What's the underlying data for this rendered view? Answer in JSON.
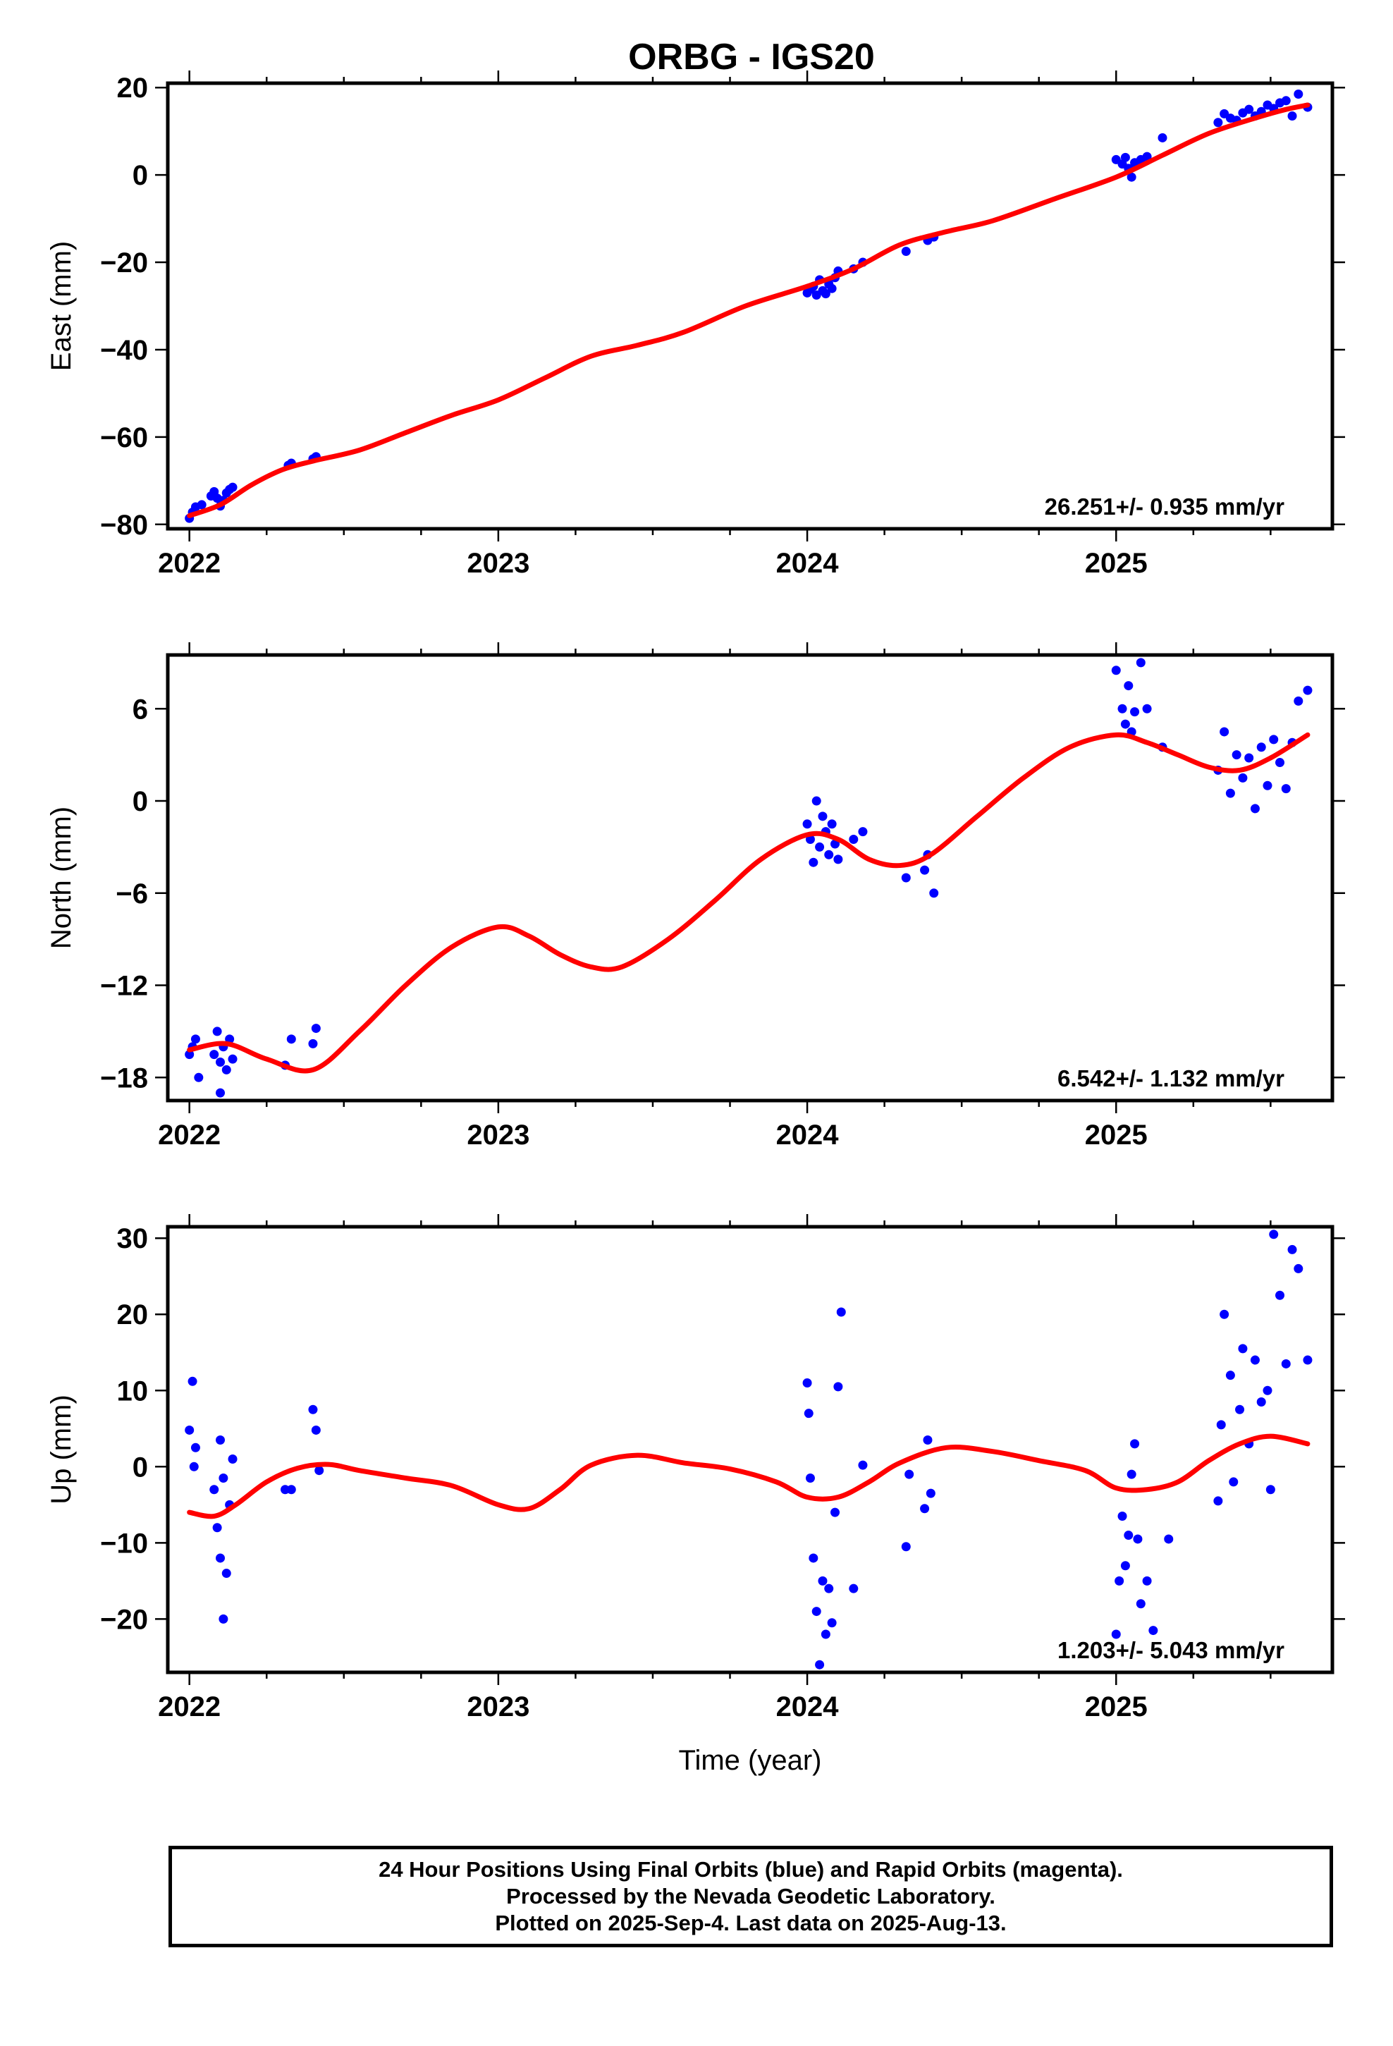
{
  "title": "ORBG - IGS20",
  "colors": {
    "final_orbits": "#0000ff",
    "fit_line": "#ff0000",
    "frame": "#000000"
  },
  "chart_data": [
    {
      "type": "scatter",
      "panel": "east",
      "ylabel": "East (mm)",
      "xlabel": "",
      "xlim": [
        2021.93,
        2025.7
      ],
      "ylim": [
        -81,
        21
      ],
      "xticks": [
        2022,
        2023,
        2024,
        2025
      ],
      "xtick_labels": [
        "2022",
        "2023",
        "2024",
        "2025"
      ],
      "yticks": [
        -80,
        -60,
        -40,
        -20,
        0,
        20
      ],
      "ytick_labels": [
        "−80",
        "−60",
        "−40",
        "−20",
        "0",
        "20"
      ],
      "velocity_label": "26.251+/- 0.935 mm/yr",
      "series": [
        {
          "style": "points",
          "x": [
            2022.0,
            2022.01,
            2022.02,
            2022.04,
            2022.07,
            2022.08,
            2022.09,
            2022.1,
            2022.11,
            2022.12,
            2022.13,
            2022.14,
            2022.32,
            2022.33,
            2022.4,
            2022.41,
            2024.0,
            2024.01,
            2024.02,
            2024.03,
            2024.04,
            2024.05,
            2024.06,
            2024.07,
            2024.08,
            2024.09,
            2024.1,
            2024.15,
            2024.18,
            2024.32,
            2024.39,
            2024.41,
            2025.0,
            2025.02,
            2025.03,
            2025.04,
            2025.05,
            2025.06,
            2025.08,
            2025.1,
            2025.15,
            2025.33,
            2025.35,
            2025.37,
            2025.39,
            2025.41,
            2025.43,
            2025.45,
            2025.47,
            2025.49,
            2025.51,
            2025.53,
            2025.55,
            2025.57,
            2025.59,
            2025.62
          ],
          "y": [
            -78.6,
            -77.2,
            -76.0,
            -75.5,
            -73.5,
            -72.5,
            -74.0,
            -75.8,
            -74.5,
            -72.8,
            -72.0,
            -71.5,
            -66.5,
            -66.0,
            -65.0,
            -64.5,
            -27.0,
            -26.2,
            -25.5,
            -27.5,
            -24.0,
            -26.5,
            -27.2,
            -25.0,
            -26.0,
            -23.5,
            -22.0,
            -21.5,
            -20.0,
            -17.5,
            -15.0,
            -14.2,
            3.5,
            2.5,
            4.0,
            1.5,
            -0.5,
            2.8,
            3.5,
            4.2,
            8.5,
            12.0,
            14.0,
            13.0,
            12.5,
            14.2,
            15.0,
            13.5,
            14.5,
            16.0,
            15.2,
            16.5,
            17.0,
            13.5,
            18.5,
            15.5
          ]
        },
        {
          "style": "line",
          "x": [
            2022.0,
            2022.1,
            2022.2,
            2022.3,
            2022.4,
            2022.55,
            2022.7,
            2022.85,
            2023.0,
            2023.15,
            2023.3,
            2023.45,
            2023.6,
            2023.8,
            2024.0,
            2024.15,
            2024.3,
            2024.45,
            2024.6,
            2024.8,
            2025.0,
            2025.15,
            2025.3,
            2025.45,
            2025.55,
            2025.62
          ],
          "y": [
            -78.0,
            -75.5,
            -71.0,
            -67.5,
            -65.5,
            -63.0,
            -59.0,
            -55.0,
            -51.5,
            -46.5,
            -41.5,
            -39.0,
            -36.0,
            -30.0,
            -25.5,
            -21.5,
            -16.0,
            -13.0,
            -10.5,
            -5.5,
            -0.5,
            4.5,
            9.5,
            13.0,
            15.0,
            16.0
          ]
        }
      ]
    },
    {
      "type": "scatter",
      "panel": "north",
      "ylabel": "North (mm)",
      "xlabel": "",
      "xlim": [
        2021.93,
        2025.7
      ],
      "ylim": [
        -19.5,
        9.5
      ],
      "xticks": [
        2022,
        2023,
        2024,
        2025
      ],
      "xtick_labels": [
        "2022",
        "2023",
        "2024",
        "2025"
      ],
      "yticks": [
        -18,
        -12,
        -6,
        0,
        6
      ],
      "ytick_labels": [
        "−18",
        "−12",
        "−6",
        "0",
        "6"
      ],
      "velocity_label": "6.542+/- 1.132 mm/yr",
      "series": [
        {
          "style": "points",
          "x": [
            2022.0,
            2022.01,
            2022.02,
            2022.03,
            2022.08,
            2022.09,
            2022.1,
            2022.11,
            2022.12,
            2022.13,
            2022.14,
            2022.1,
            2022.31,
            2022.33,
            2022.4,
            2022.41,
            2024.0,
            2024.01,
            2024.02,
            2024.03,
            2024.04,
            2024.05,
            2024.06,
            2024.07,
            2024.08,
            2024.09,
            2024.1,
            2024.15,
            2024.18,
            2024.32,
            2024.38,
            2024.39,
            2024.41,
            2025.0,
            2025.02,
            2025.03,
            2025.04,
            2025.05,
            2025.06,
            2025.08,
            2025.1,
            2025.15,
            2025.33,
            2025.35,
            2025.37,
            2025.39,
            2025.41,
            2025.43,
            2025.45,
            2025.47,
            2025.49,
            2025.51,
            2025.53,
            2025.55,
            2025.57,
            2025.59,
            2025.62
          ],
          "y": [
            -16.5,
            -16.0,
            -15.5,
            -18.0,
            -16.5,
            -15.0,
            -17.0,
            -16.0,
            -17.5,
            -15.5,
            -16.8,
            -19.0,
            -17.2,
            -15.5,
            -15.8,
            -14.8,
            -1.5,
            -2.5,
            -4.0,
            0.0,
            -3.0,
            -1.0,
            -2.0,
            -3.5,
            -1.5,
            -2.8,
            -3.8,
            -2.5,
            -2.0,
            -5.0,
            -4.5,
            -3.5,
            -6.0,
            8.5,
            6.0,
            5.0,
            7.5,
            4.5,
            5.8,
            9.0,
            6.0,
            3.5,
            2.0,
            4.5,
            0.5,
            3.0,
            1.5,
            2.8,
            -0.5,
            3.5,
            1.0,
            4.0,
            2.5,
            0.8,
            3.8,
            6.5,
            7.2
          ]
        },
        {
          "style": "line",
          "x": [
            2022.0,
            2022.12,
            2022.25,
            2022.4,
            2022.55,
            2022.7,
            2022.85,
            2023.0,
            2023.1,
            2023.2,
            2023.3,
            2023.4,
            2023.55,
            2023.7,
            2023.85,
            2024.0,
            2024.1,
            2024.2,
            2024.3,
            2024.4,
            2024.55,
            2024.7,
            2024.85,
            2025.0,
            2025.1,
            2025.2,
            2025.3,
            2025.4,
            2025.5,
            2025.62
          ],
          "y": [
            -16.2,
            -15.8,
            -16.8,
            -17.5,
            -15.0,
            -12.0,
            -9.5,
            -8.2,
            -8.8,
            -10.0,
            -10.8,
            -10.8,
            -9.0,
            -6.5,
            -3.8,
            -2.2,
            -2.5,
            -3.8,
            -4.2,
            -3.5,
            -1.0,
            1.5,
            3.5,
            4.3,
            3.8,
            3.0,
            2.2,
            2.0,
            2.8,
            4.3
          ]
        }
      ]
    },
    {
      "type": "scatter",
      "panel": "up",
      "ylabel": "Up (mm)",
      "xlabel": "Time (year)",
      "xlim": [
        2021.93,
        2025.7
      ],
      "ylim": [
        -27,
        31.5
      ],
      "xticks": [
        2022,
        2023,
        2024,
        2025
      ],
      "xtick_labels": [
        "2022",
        "2023",
        "2024",
        "2025"
      ],
      "yticks": [
        -20,
        -10,
        0,
        10,
        20,
        30
      ],
      "ytick_labels": [
        "−20",
        "−10",
        "0",
        "10",
        "20",
        "30"
      ],
      "velocity_label": "1.203+/- 5.043 mm/yr",
      "series": [
        {
          "style": "points",
          "x": [
            2022.0,
            2022.01,
            2022.015,
            2022.02,
            2022.08,
            2022.09,
            2022.1,
            2022.1,
            2022.11,
            2022.11,
            2022.12,
            2022.13,
            2022.14,
            2022.31,
            2022.33,
            2022.4,
            2022.41,
            2022.42,
            2024.0,
            2024.005,
            2024.01,
            2024.02,
            2024.03,
            2024.04,
            2024.05,
            2024.06,
            2024.07,
            2024.08,
            2024.09,
            2024.1,
            2024.11,
            2024.15,
            2024.18,
            2024.32,
            2024.33,
            2024.38,
            2024.39,
            2024.4,
            2025.0,
            2025.01,
            2025.02,
            2025.03,
            2025.04,
            2025.05,
            2025.06,
            2025.07,
            2025.08,
            2025.1,
            2025.12,
            2025.17,
            2025.33,
            2025.34,
            2025.35,
            2025.37,
            2025.38,
            2025.4,
            2025.41,
            2025.43,
            2025.45,
            2025.47,
            2025.49,
            2025.5,
            2025.51,
            2025.53,
            2025.55,
            2025.57,
            2025.59,
            2025.62
          ],
          "y": [
            4.8,
            11.2,
            0.0,
            2.5,
            -3.0,
            -8.0,
            3.5,
            -12.0,
            -1.5,
            -20.0,
            -14.0,
            -5.0,
            1.0,
            -3.0,
            -3.0,
            7.5,
            4.8,
            -0.5,
            11.0,
            7.0,
            -1.5,
            -12.0,
            -19.0,
            -26.0,
            -15.0,
            -22.0,
            -16.0,
            -20.5,
            -6.0,
            10.5,
            20.3,
            -16.0,
            0.2,
            -10.5,
            -1.0,
            -5.5,
            3.5,
            -3.5,
            -22.0,
            -15.0,
            -6.5,
            -13.0,
            -9.0,
            -1.0,
            3.0,
            -9.5,
            -18.0,
            -15.0,
            -21.5,
            -9.5,
            -4.5,
            5.5,
            20.0,
            12.0,
            -2.0,
            7.5,
            15.5,
            3.0,
            14.0,
            8.5,
            10.0,
            -3.0,
            30.5,
            22.5,
            13.5,
            28.5,
            26.0,
            14.0
          ]
        },
        {
          "style": "line",
          "x": [
            2022.0,
            2022.08,
            2022.15,
            2022.25,
            2022.35,
            2022.45,
            2022.55,
            2022.7,
            2022.85,
            2023.0,
            2023.1,
            2023.2,
            2023.3,
            2023.45,
            2023.6,
            2023.75,
            2023.9,
            2024.0,
            2024.1,
            2024.2,
            2024.3,
            2024.45,
            2024.6,
            2024.75,
            2024.9,
            2025.0,
            2025.1,
            2025.2,
            2025.3,
            2025.4,
            2025.5,
            2025.62
          ],
          "y": [
            -6.0,
            -6.5,
            -5.0,
            -2.0,
            -0.2,
            0.3,
            -0.5,
            -1.5,
            -2.5,
            -5.0,
            -5.5,
            -3.0,
            0.2,
            1.5,
            0.5,
            -0.3,
            -2.0,
            -4.0,
            -4.0,
            -2.0,
            0.5,
            2.5,
            2.0,
            0.8,
            -0.5,
            -2.8,
            -3.0,
            -2.0,
            0.8,
            3.0,
            4.0,
            3.0
          ]
        }
      ]
    }
  ],
  "footer": {
    "line1": "24 Hour Positions Using Final Orbits (blue) and Rapid Orbits (magenta).",
    "line2": "Processed by the Nevada Geodetic Laboratory.",
    "line3": "Plotted on 2025-Sep-4. Last data on 2025-Aug-13."
  }
}
